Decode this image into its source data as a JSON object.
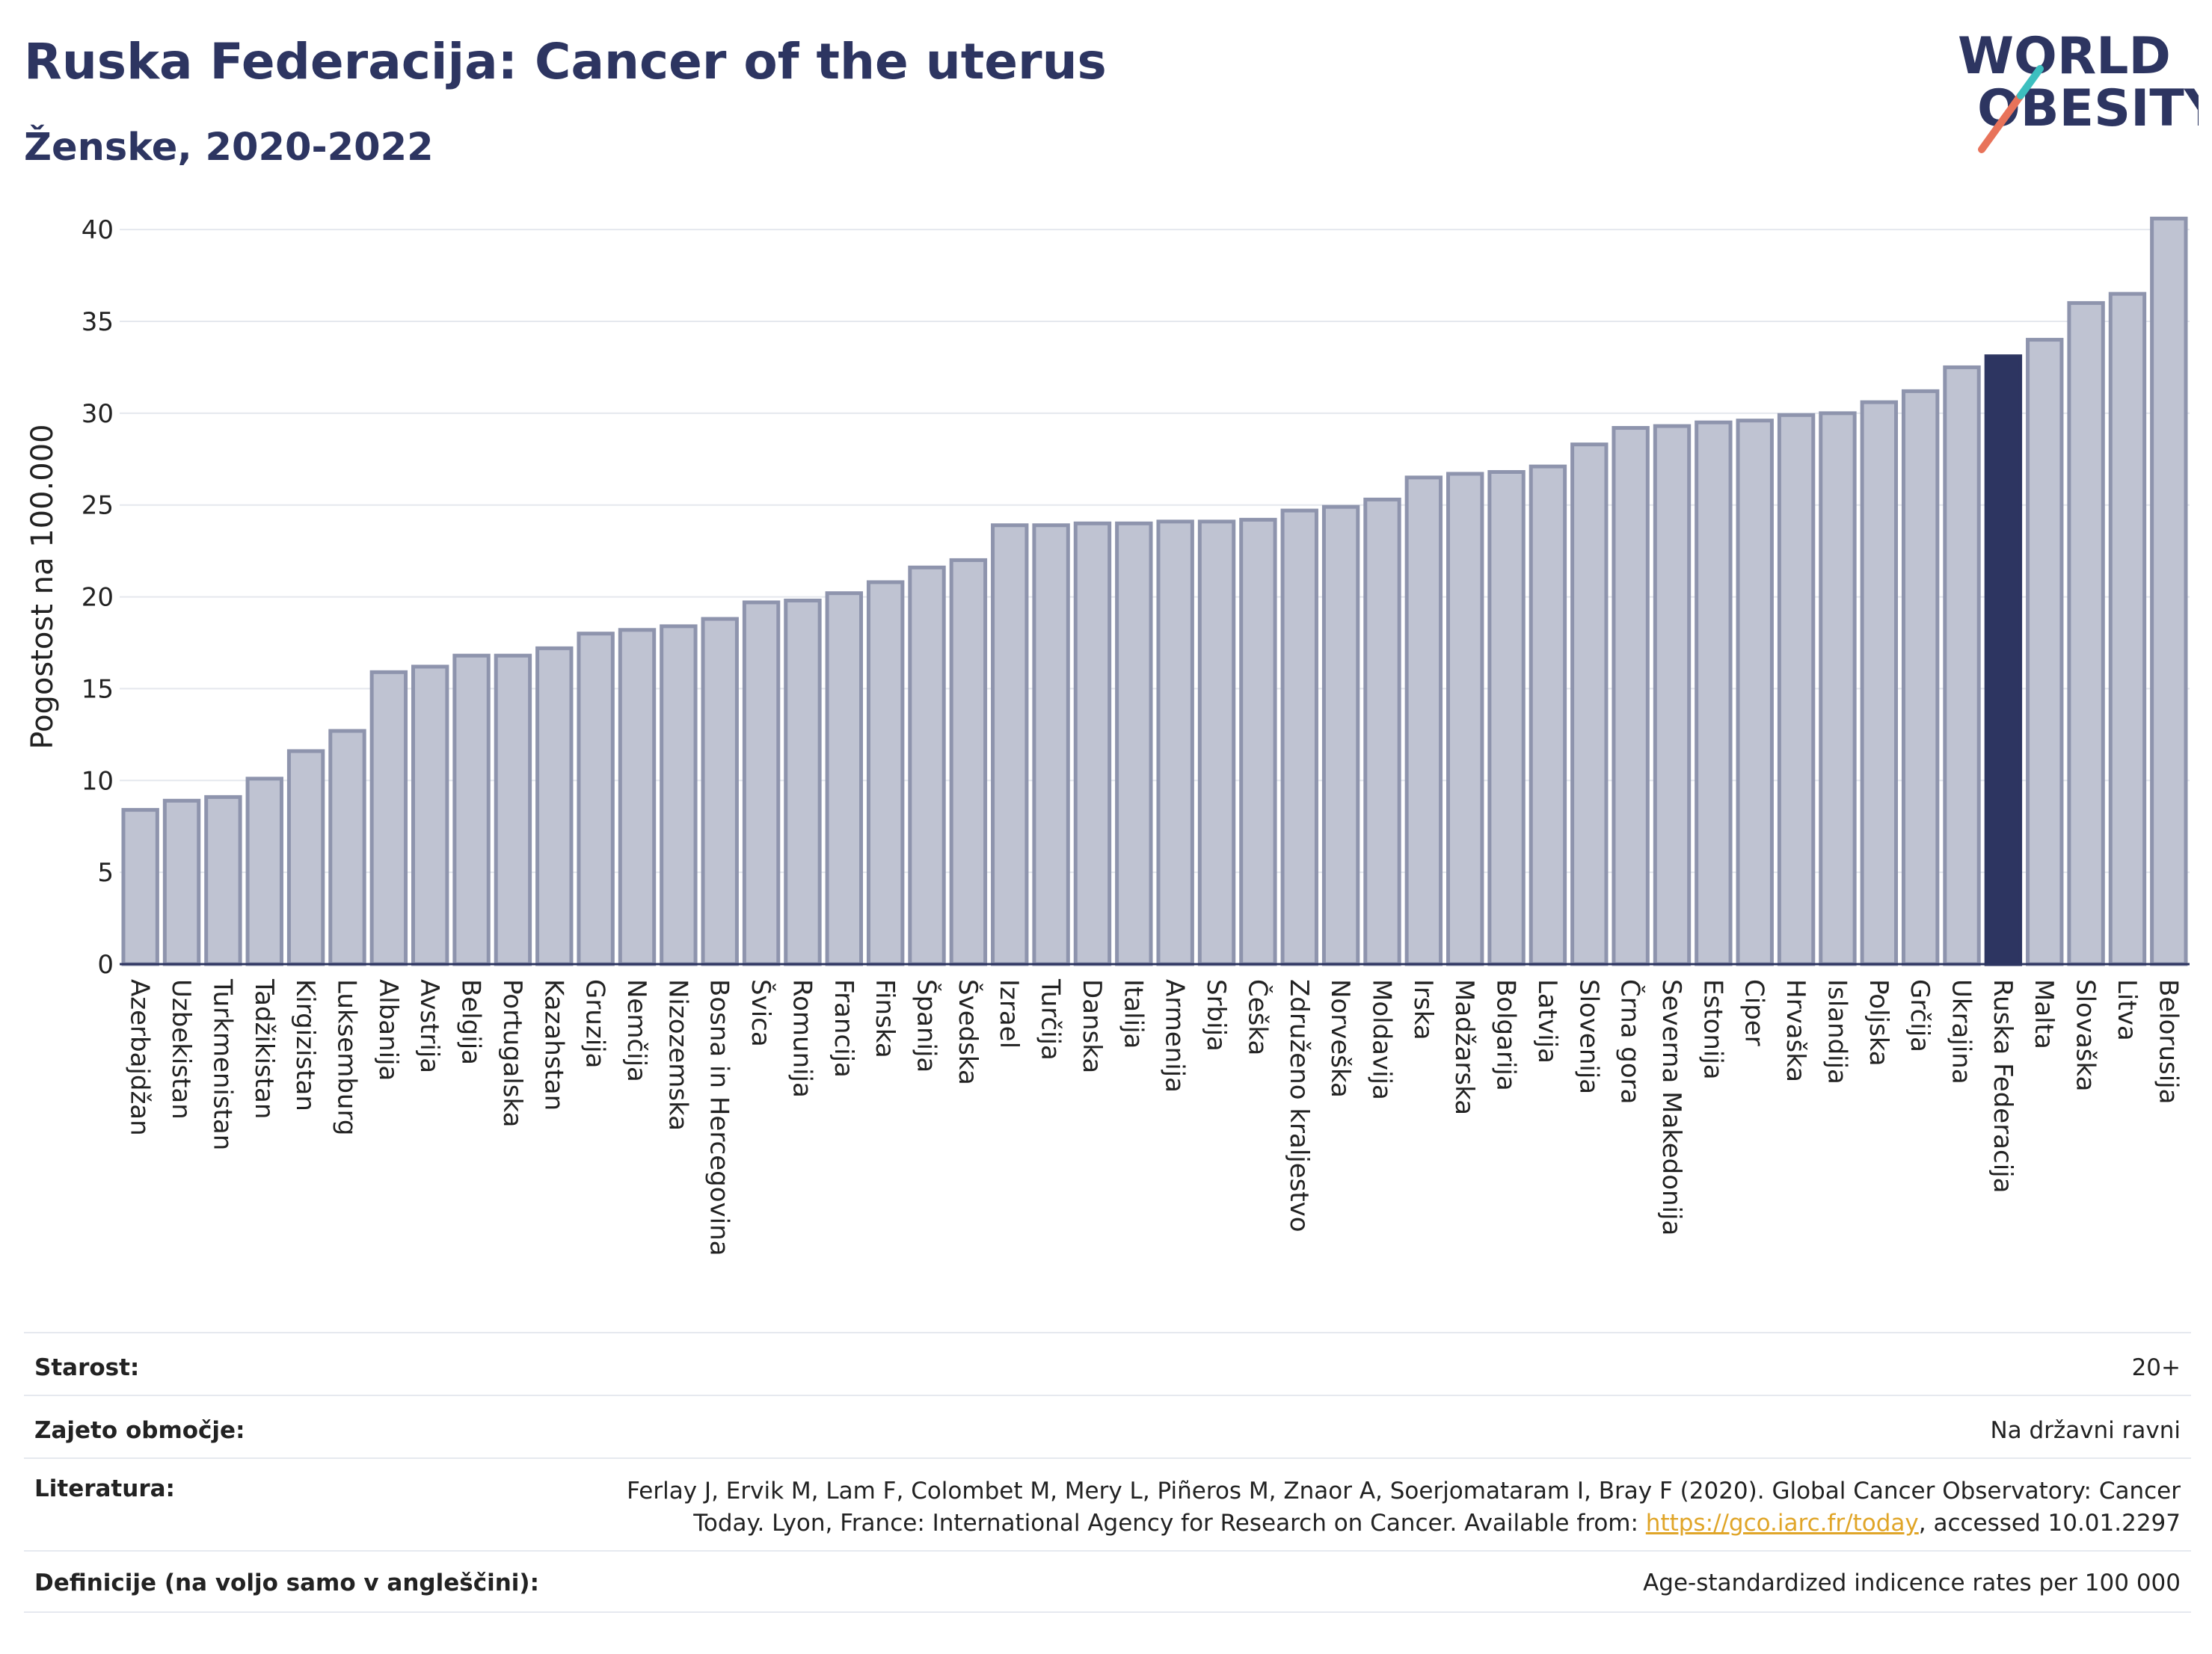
{
  "header": {
    "title": "Ruska Federacija: Cancer of the uterus",
    "subtitle": "Ženske, 2020-2022"
  },
  "logo": {
    "line1": "WORLD",
    "line2": "OBESITY",
    "accent_color": "#e8735a",
    "accent2_color": "#3dbfbf"
  },
  "colors": {
    "bar": "#bfc3d2",
    "bar_border": "#8e94ad",
    "highlight": "#2d3561",
    "grid": "#e5e8ee"
  },
  "chart_data": {
    "type": "bar",
    "title": "Ruska Federacija: Cancer of the uterus",
    "subtitle": "Ženske, 2020-2022",
    "xlabel": "",
    "ylabel": "Pogostost na 100.000",
    "ylim": [
      0,
      42
    ],
    "yticks": [
      0,
      5,
      10,
      15,
      20,
      25,
      30,
      35,
      40
    ],
    "grid": true,
    "highlight": "Ruska Federacija",
    "categories": [
      "Azerbajdžan",
      "Uzbekistan",
      "Turkmenistan",
      "Tadžikistan",
      "Kirgizistan",
      "Luksemburg",
      "Albanija",
      "Avstrija",
      "Belgija",
      "Portugalska",
      "Kazahstan",
      "Gruzija",
      "Nemčija",
      "Nizozemska",
      "Bosna in Hercegovina",
      "Švica",
      "Romunija",
      "Francija",
      "Finska",
      "Španija",
      "Švedska",
      "Izrael",
      "Turčija",
      "Danska",
      "Italija",
      "Armenija",
      "Srbija",
      "Češka",
      "Združeno kraljestvo",
      "Norveška",
      "Moldavija",
      "Irska",
      "Madžarska",
      "Bolgarija",
      "Latvija",
      "Slovenija",
      "Črna gora",
      "Severna Makedonija",
      "Estonija",
      "Ciper",
      "Hrvaška",
      "Islandija",
      "Poljska",
      "Grčija",
      "Ukrajina",
      "Ruska Federacija",
      "Malta",
      "Slovaška",
      "Litva",
      "Belorusija"
    ],
    "values": [
      8.4,
      8.9,
      9.1,
      10.1,
      11.6,
      12.7,
      15.9,
      16.2,
      16.8,
      16.8,
      17.2,
      18.0,
      18.2,
      18.4,
      18.8,
      19.7,
      19.8,
      20.2,
      20.8,
      21.6,
      22.0,
      23.9,
      23.9,
      24.0,
      24.0,
      24.1,
      24.1,
      24.2,
      24.7,
      24.9,
      25.3,
      26.5,
      26.7,
      26.8,
      27.1,
      28.3,
      29.2,
      29.3,
      29.5,
      29.6,
      29.9,
      30.0,
      30.6,
      31.2,
      32.5,
      33.1,
      34.0,
      36.0,
      36.5,
      40.6
    ]
  },
  "footer": {
    "rows": [
      {
        "label": "Starost:",
        "value": "20+"
      },
      {
        "label": "Zajeto območje:",
        "value": "Na državni ravni"
      },
      {
        "label": "Literatura:",
        "value_pre": "Ferlay J, Ervik M, Lam F, Colombet M, Mery L, Piñeros M, Znaor A, Soerjomataram I, Bray F (2020). Global Cancer Observatory: Cancer Today. Lyon, France: International Agency for Research on Cancer. Available from: ",
        "link": "https://gco.iarc.fr/today",
        "value_post": ", accessed 10.01.2297"
      },
      {
        "label": "Definicije (na voljo samo v angleščini):",
        "value": "Age-standardized indicence rates per 100 000"
      }
    ]
  }
}
